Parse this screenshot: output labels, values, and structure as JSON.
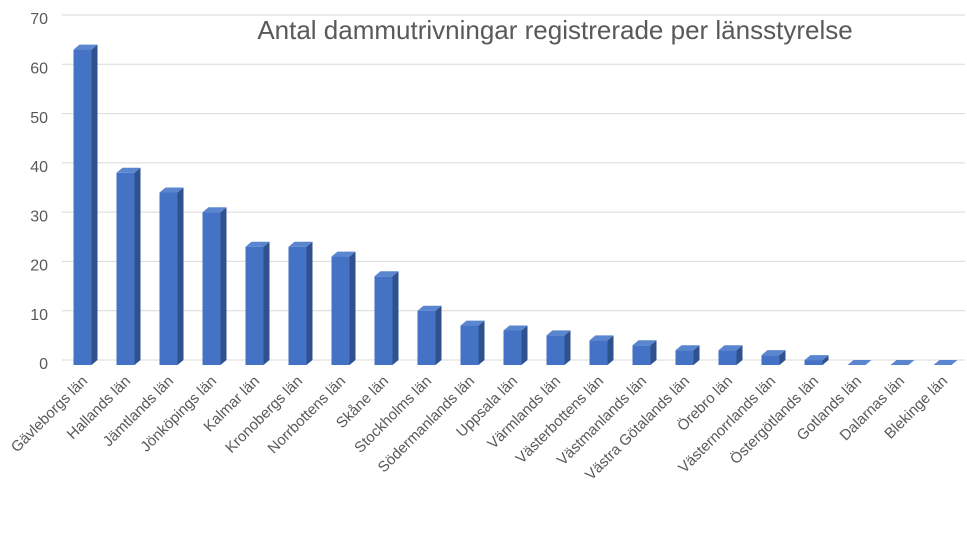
{
  "chart_data": {
    "type": "bar3d",
    "title": "Antal dammutrivningar registrerade per länsstyrelse",
    "categories": [
      "Gävleborgs län",
      "Hallands län",
      "Jämtlands län",
      "Jönköpings län",
      "Kalmar län",
      "Kronobergs län",
      "Norrbottens län",
      "Skåne län",
      "Stockholms län",
      "Södermanlands län",
      "Uppsala län",
      "Värmlands län",
      "Västerbottens län",
      "Västmanlands län",
      "Västra Götalands län",
      "Örebro län",
      "Västernorrlands län",
      "Östergötlands län",
      "Gotlands län",
      "Dalarnas län",
      "Blekinge län"
    ],
    "values": [
      64,
      39,
      35,
      31,
      24,
      24,
      22,
      18,
      11,
      8,
      7,
      6,
      5,
      4,
      3,
      3,
      2,
      1,
      0,
      0,
      0
    ],
    "color": "#4472c4",
    "ylim": [
      0,
      70
    ],
    "yticks": [
      0,
      10,
      20,
      30,
      40,
      50,
      60,
      70
    ],
    "grid": true
  }
}
